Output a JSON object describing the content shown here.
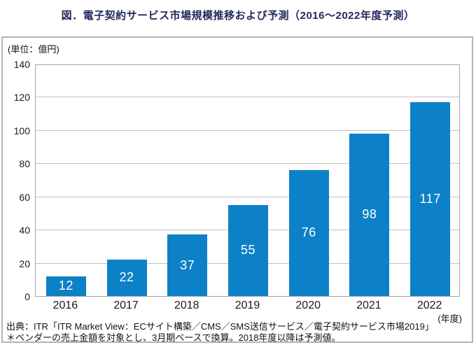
{
  "title": "図．電子契約サービス市場規模推移および予測（2016～2022年度予測）",
  "chart_data": {
    "type": "bar",
    "title": "図．電子契約サービス市場規模推移および予測（2016～2022年度予測）",
    "unit_label": "(単位：億円)",
    "x_axis_unit": "(年度)",
    "categories": [
      "2016",
      "2017",
      "2018",
      "2019",
      "2020",
      "2021",
      "2022"
    ],
    "values": [
      12,
      22,
      37,
      55,
      76,
      98,
      117
    ],
    "ylim": [
      0,
      140
    ],
    "ytick_step": 20,
    "grid": "horizontal",
    "legend_position": "none",
    "bar_color": "#0d81c8",
    "value_label_color": "#ffffff"
  },
  "footer": {
    "source": "出典：ITR「ITR Market View：ECサイト構築／CMS／SMS送信サービス／電子契約サービス市場2019」",
    "note": "＊ベンダーの売上金額を対象とし、3月期ベースで換算。2018年度以降は予測値。"
  },
  "colors": {
    "title_text": "#232a5e",
    "bar": "#0d81c8",
    "gridline": "#c3c3c3",
    "plot_border": "#a6a6a6",
    "frame_border": "#b4b4b4"
  }
}
